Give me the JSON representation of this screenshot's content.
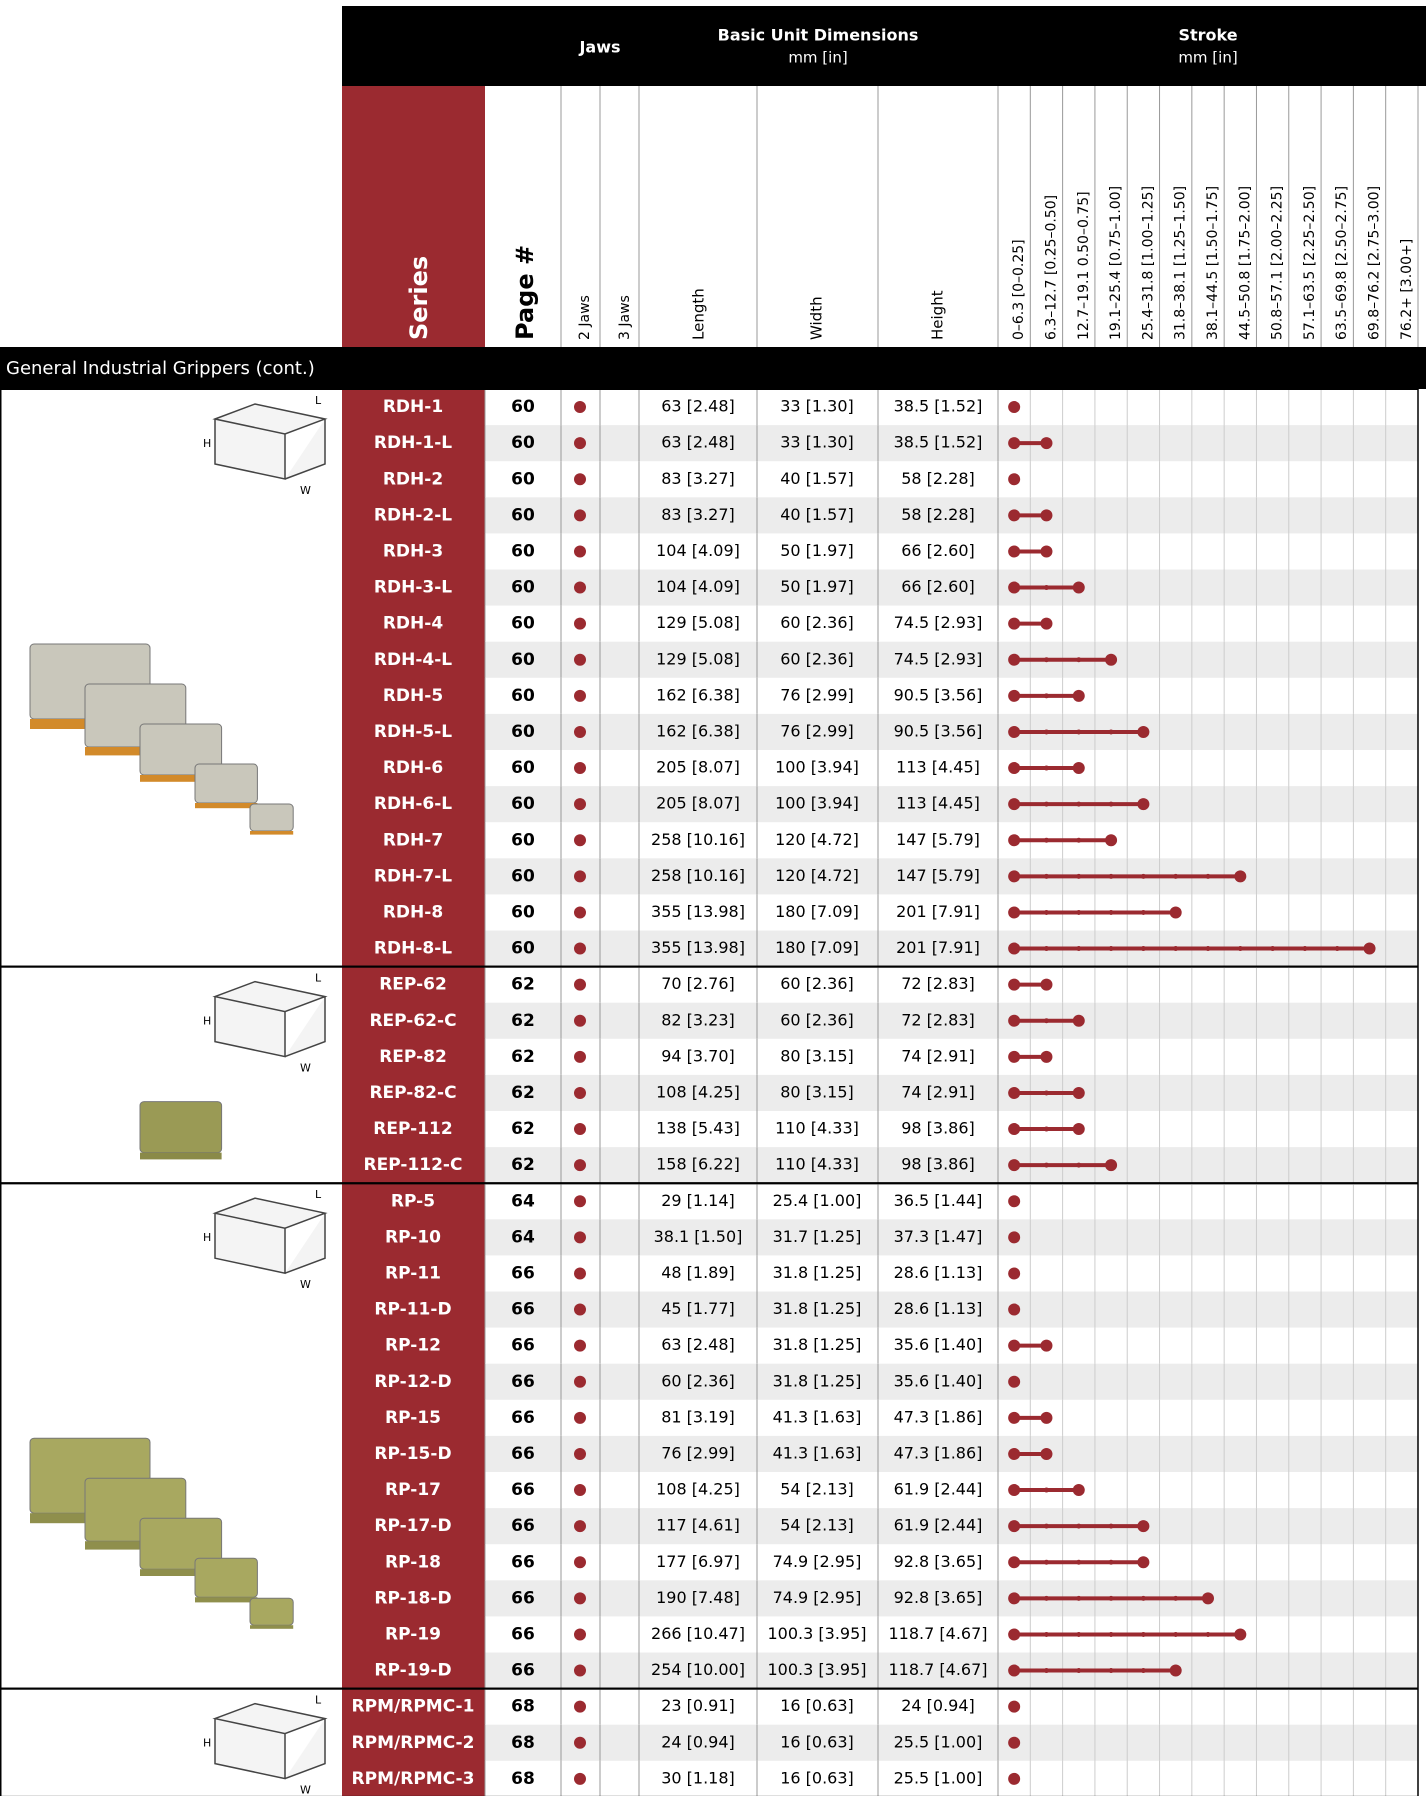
{
  "header": {
    "jaws": "Jaws",
    "dimensions": "Basic Unit Dimensions",
    "dimensions_unit": "mm [in]",
    "stroke": "Stroke",
    "stroke_unit": "mm [in]"
  },
  "columns": {
    "series": "Series",
    "page": "Page #",
    "jaws": [
      "2 Jaws",
      "3 Jaws"
    ],
    "dims": [
      "Length",
      "Width",
      "Height"
    ],
    "stroke": [
      "0–6.3 [0–0.25]",
      "6.3–12.7 [0.25–0.50]",
      "12.7–19.1 0.50–0.75]",
      "19.1–25.4 [0.75–1.00]",
      "25.4–31.8 [1.00–1.25]",
      "31.8–38.1 [1.25–1.50]",
      "38.1–44.5 [1.50–1.75]",
      "44.5–50.8 [1.75–2.00]",
      "50.8–57.1 [2.00–2.25]",
      "57.1–63.5 [2.25–2.50]",
      "63.5–69.8 [2.50–2.75]",
      "69.8–76.2 [2.75–3.00]",
      "76.2+ [3.00+]"
    ]
  },
  "section": "General Industrial Grippers (cont.)",
  "dimension_labels": {
    "l": "L",
    "h": "H",
    "w": "W"
  },
  "groups": [
    {
      "rows": [
        {
          "series": "RDH-1",
          "page": "60",
          "jaws": 2,
          "length": "63 [2.48]",
          "width": "33 [1.30]",
          "height": "38.5 [1.52]",
          "stroke_col": 0
        },
        {
          "series": "RDH-1-L",
          "page": "60",
          "jaws": 2,
          "length": "63 [2.48]",
          "width": "33 [1.30]",
          "height": "38.5 [1.52]",
          "stroke_col": 1
        },
        {
          "series": "RDH-2",
          "page": "60",
          "jaws": 2,
          "length": "83 [3.27]",
          "width": "40 [1.57]",
          "height": "58 [2.28]",
          "stroke_col": 0
        },
        {
          "series": "RDH-2-L",
          "page": "60",
          "jaws": 2,
          "length": "83 [3.27]",
          "width": "40 [1.57]",
          "height": "58 [2.28]",
          "stroke_col": 1
        },
        {
          "series": "RDH-3",
          "page": "60",
          "jaws": 2,
          "length": "104 [4.09]",
          "width": "50 [1.97]",
          "height": "66 [2.60]",
          "stroke_col": 1
        },
        {
          "series": "RDH-3-L",
          "page": "60",
          "jaws": 2,
          "length": "104 [4.09]",
          "width": "50 [1.97]",
          "height": "66 [2.60]",
          "stroke_col": 2
        },
        {
          "series": "RDH-4",
          "page": "60",
          "jaws": 2,
          "length": "129 [5.08]",
          "width": "60 [2.36]",
          "height": "74.5 [2.93]",
          "stroke_col": 1
        },
        {
          "series": "RDH-4-L",
          "page": "60",
          "jaws": 2,
          "length": "129 [5.08]",
          "width": "60 [2.36]",
          "height": "74.5 [2.93]",
          "stroke_col": 3
        },
        {
          "series": "RDH-5",
          "page": "60",
          "jaws": 2,
          "length": "162 [6.38]",
          "width": "76 [2.99]",
          "height": "90.5 [3.56]",
          "stroke_col": 2
        },
        {
          "series": "RDH-5-L",
          "page": "60",
          "jaws": 2,
          "length": "162 [6.38]",
          "width": "76 [2.99]",
          "height": "90.5 [3.56]",
          "stroke_col": 4
        },
        {
          "series": "RDH-6",
          "page": "60",
          "jaws": 2,
          "length": "205 [8.07]",
          "width": "100 [3.94]",
          "height": "113 [4.45]",
          "stroke_col": 2
        },
        {
          "series": "RDH-6-L",
          "page": "60",
          "jaws": 2,
          "length": "205 [8.07]",
          "width": "100 [3.94]",
          "height": "113 [4.45]",
          "stroke_col": 4
        },
        {
          "series": "RDH-7",
          "page": "60",
          "jaws": 2,
          "length": "258 [10.16]",
          "width": "120 [4.72]",
          "height": "147 [5.79]",
          "stroke_col": 3
        },
        {
          "series": "RDH-7-L",
          "page": "60",
          "jaws": 2,
          "length": "258 [10.16]",
          "width": "120 [4.72]",
          "height": "147 [5.79]",
          "stroke_col": 7
        },
        {
          "series": "RDH-8",
          "page": "60",
          "jaws": 2,
          "length": "355 [13.98]",
          "width": "180 [7.09]",
          "height": "201 [7.91]",
          "stroke_col": 5
        },
        {
          "series": "RDH-8-L",
          "page": "60",
          "jaws": 2,
          "length": "355 [13.98]",
          "width": "180 [7.09]",
          "height": "201 [7.91]",
          "stroke_col": 11
        }
      ]
    },
    {
      "rows": [
        {
          "series": "REP-62",
          "page": "62",
          "jaws": 2,
          "length": "70 [2.76]",
          "width": "60 [2.36]",
          "height": "72 [2.83]",
          "stroke_col": 1
        },
        {
          "series": "REP-62-C",
          "page": "62",
          "jaws": 2,
          "length": "82 [3.23]",
          "width": "60 [2.36]",
          "height": "72 [2.83]",
          "stroke_col": 2
        },
        {
          "series": "REP-82",
          "page": "62",
          "jaws": 2,
          "length": "94 [3.70]",
          "width": "80 [3.15]",
          "height": "74 [2.91]",
          "stroke_col": 1
        },
        {
          "series": "REP-82-C",
          "page": "62",
          "jaws": 2,
          "length": "108 [4.25]",
          "width": "80 [3.15]",
          "height": "74 [2.91]",
          "stroke_col": 2
        },
        {
          "series": "REP-112",
          "page": "62",
          "jaws": 2,
          "length": "138 [5.43]",
          "width": "110 [4.33]",
          "height": "98 [3.86]",
          "stroke_col": 2
        },
        {
          "series": "REP-112-C",
          "page": "62",
          "jaws": 2,
          "length": "158 [6.22]",
          "width": "110 [4.33]",
          "height": "98 [3.86]",
          "stroke_col": 3
        }
      ]
    },
    {
      "rows": [
        {
          "series": "RP-5",
          "page": "64",
          "jaws": 2,
          "length": "29 [1.14]",
          "width": "25.4 [1.00]",
          "height": "36.5 [1.44]",
          "stroke_col": 0
        },
        {
          "series": "RP-10",
          "page": "64",
          "jaws": 2,
          "length": "38.1 [1.50]",
          "width": "31.7 [1.25]",
          "height": "37.3 [1.47]",
          "stroke_col": 0
        },
        {
          "series": "RP-11",
          "page": "66",
          "jaws": 2,
          "length": "48 [1.89]",
          "width": "31.8 [1.25]",
          "height": "28.6 [1.13]",
          "stroke_col": 0
        },
        {
          "series": "RP-11-D",
          "page": "66",
          "jaws": 2,
          "length": "45 [1.77]",
          "width": "31.8 [1.25]",
          "height": "28.6 [1.13]",
          "stroke_col": 0
        },
        {
          "series": "RP-12",
          "page": "66",
          "jaws": 2,
          "length": "63 [2.48]",
          "width": "31.8 [1.25]",
          "height": "35.6 [1.40]",
          "stroke_col": 1
        },
        {
          "series": "RP-12-D",
          "page": "66",
          "jaws": 2,
          "length": "60 [2.36]",
          "width": "31.8 [1.25]",
          "height": "35.6 [1.40]",
          "stroke_col": 0
        },
        {
          "series": "RP-15",
          "page": "66",
          "jaws": 2,
          "length": "81 [3.19]",
          "width": "41.3 [1.63]",
          "height": "47.3 [1.86]",
          "stroke_col": 1
        },
        {
          "series": "RP-15-D",
          "page": "66",
          "jaws": 2,
          "length": "76 [2.99]",
          "width": "41.3 [1.63]",
          "height": "47.3 [1.86]",
          "stroke_col": 1
        },
        {
          "series": "RP-17",
          "page": "66",
          "jaws": 2,
          "length": "108 [4.25]",
          "width": "54 [2.13]",
          "height": "61.9 [2.44]",
          "stroke_col": 2
        },
        {
          "series": "RP-17-D",
          "page": "66",
          "jaws": 2,
          "length": "117 [4.61]",
          "width": "54 [2.13]",
          "height": "61.9 [2.44]",
          "stroke_col": 4
        },
        {
          "series": "RP-18",
          "page": "66",
          "jaws": 2,
          "length": "177 [6.97]",
          "width": "74.9 [2.95]",
          "height": "92.8 [3.65]",
          "stroke_col": 4
        },
        {
          "series": "RP-18-D",
          "page": "66",
          "jaws": 2,
          "length": "190 [7.48]",
          "width": "74.9 [2.95]",
          "height": "92.8 [3.65]",
          "stroke_col": 6
        },
        {
          "series": "RP-19",
          "page": "66",
          "jaws": 2,
          "length": "266 [10.47]",
          "width": "100.3 [3.95]",
          "height": "118.7 [4.67]",
          "stroke_col": 7
        },
        {
          "series": "RP-19-D",
          "page": "66",
          "jaws": 2,
          "length": "254 [10.00]",
          "width": "100.3 [3.95]",
          "height": "118.7 [4.67]",
          "stroke_col": 5
        }
      ]
    },
    {
      "rows": [
        {
          "series": "RPM/RPMC-1",
          "page": "68",
          "jaws": 2,
          "length": "23 [0.91]",
          "width": "16 [0.63]",
          "height": "24 [0.94]",
          "stroke_col": 0
        },
        {
          "series": "RPM/RPMC-2",
          "page": "68",
          "jaws": 2,
          "length": "24 [0.94]",
          "width": "16 [0.63]",
          "height": "25.5 [1.00]",
          "stroke_col": 0
        },
        {
          "series": "RPM/RPMC-3",
          "page": "68",
          "jaws": 2,
          "length": "30 [1.18]",
          "width": "16 [0.63]",
          "height": "25.5 [1.00]",
          "stroke_col": 0
        }
      ]
    }
  ]
}
